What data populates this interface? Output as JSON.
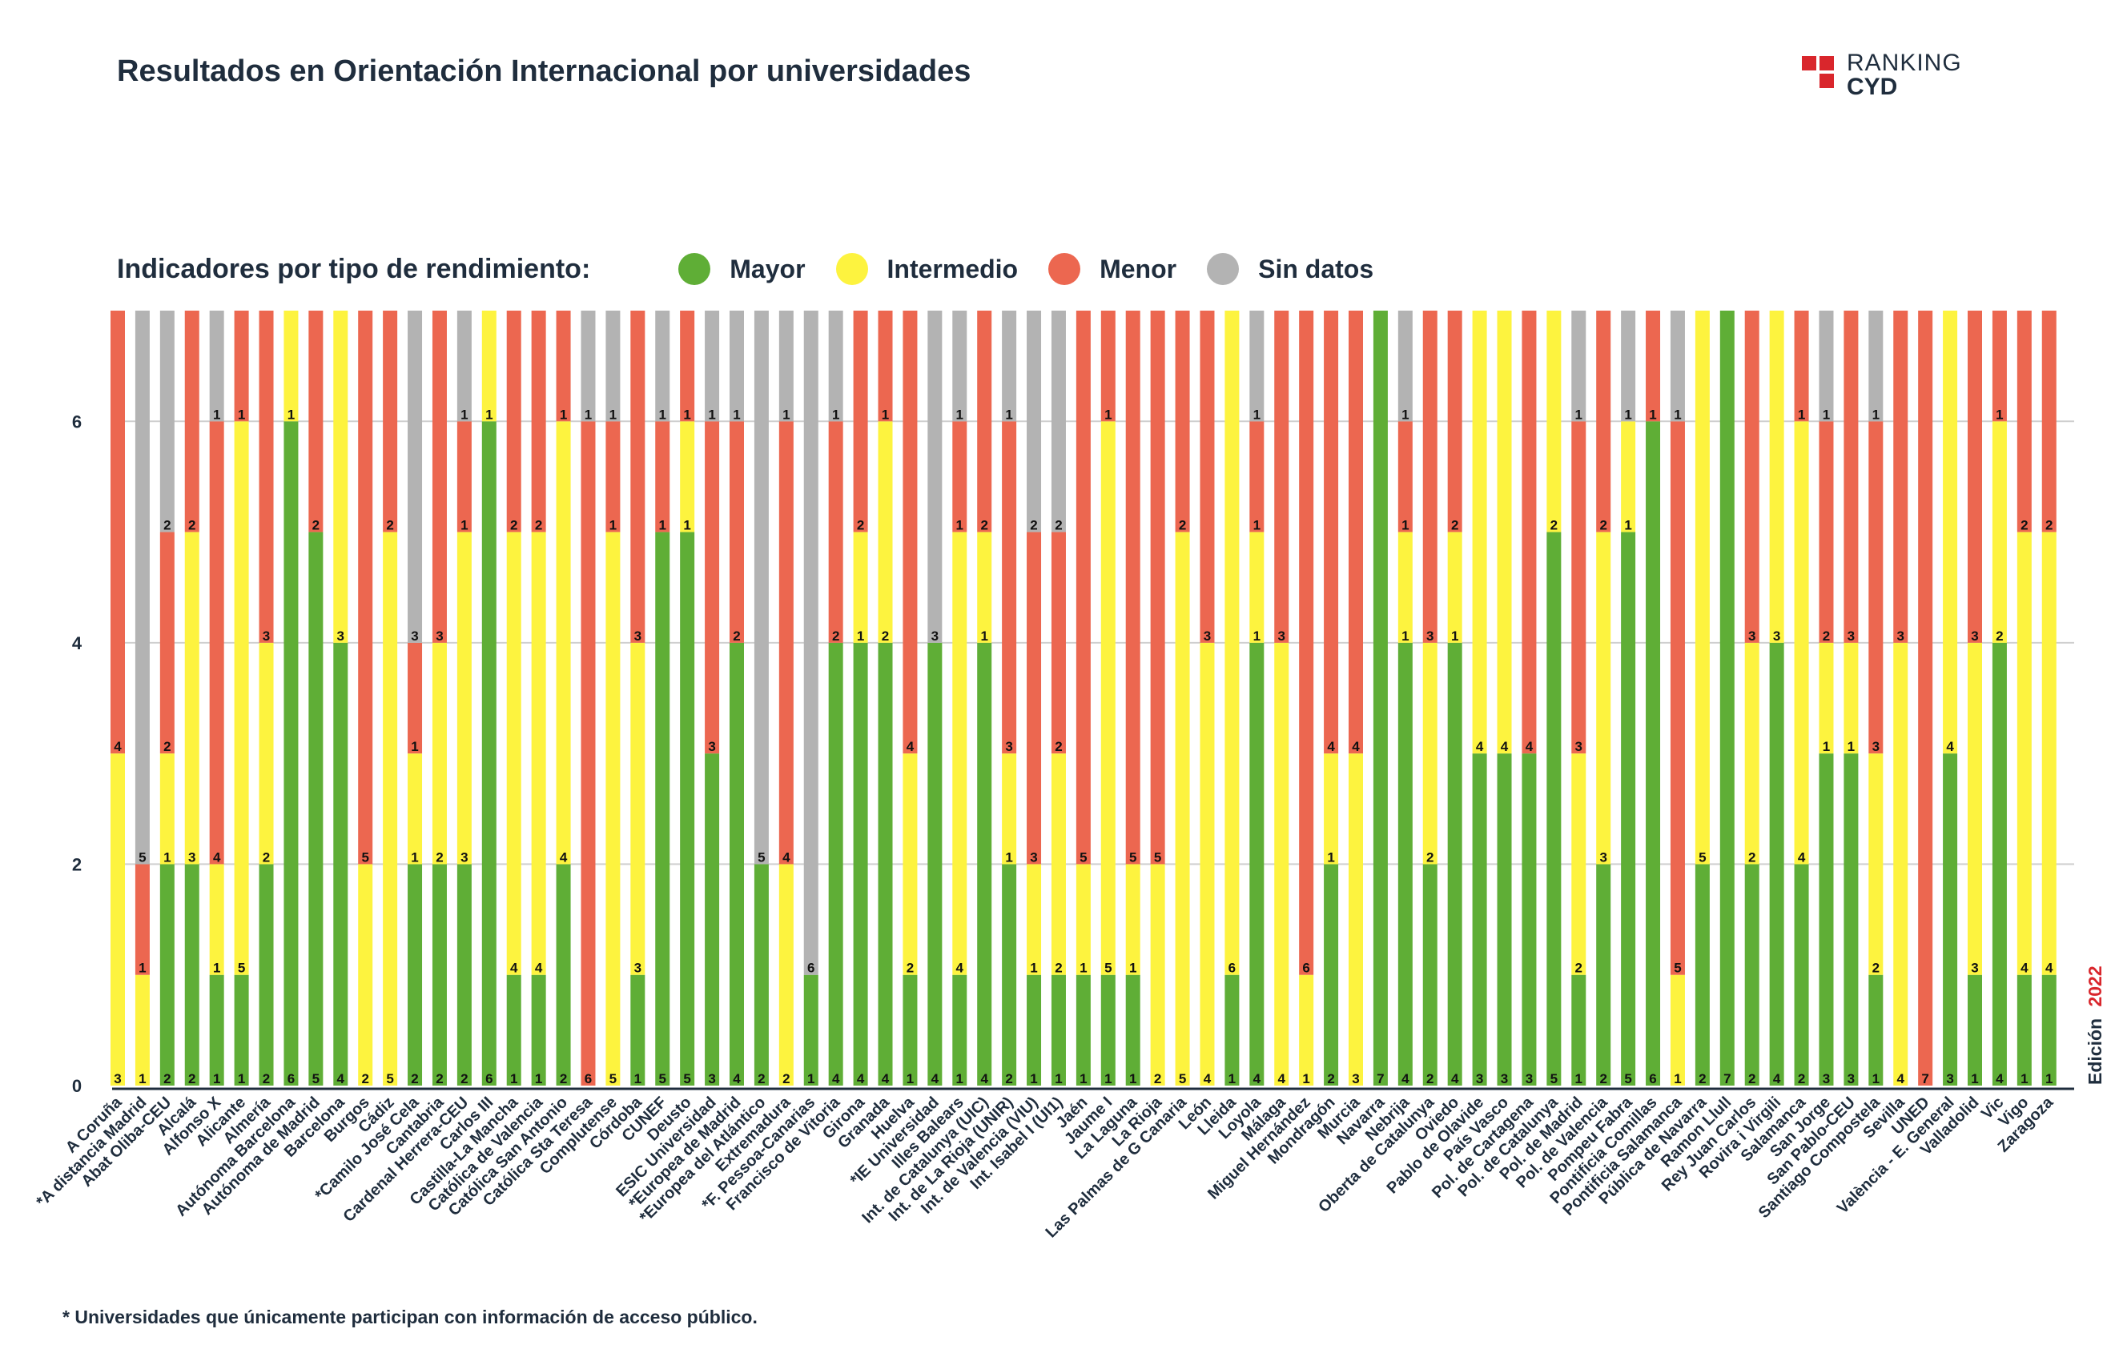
{
  "title": "Resultados en Orientación Internacional por universidades",
  "logo": {
    "line1": "RANKING",
    "line2": "CYD"
  },
  "legend": {
    "title": "Indicadores por tipo de rendimiento:",
    "items": [
      {
        "label": "Mayor",
        "color": "#5fae36"
      },
      {
        "label": "Intermedio",
        "color": "#fdf33f"
      },
      {
        "label": "Menor",
        "color": "#ec6750"
      },
      {
        "label": "Sin datos",
        "color": "#b3b3b3"
      }
    ]
  },
  "edition": {
    "label": "Edición",
    "year": "2022"
  },
  "footnote": "* Universidades que únicamente participan con información de acceso público.",
  "chart_data": {
    "type": "bar",
    "stacked": true,
    "ylim": [
      0,
      7
    ],
    "yticks": [
      0,
      2,
      4,
      6
    ],
    "grid": true,
    "legend_position": "top",
    "categories": [
      "A Coruña",
      "*A distancia Madrid",
      "Abat Oliba-CEU",
      "Alcalá",
      "Alfonso X",
      "Alicante",
      "Almería",
      "Autónoma Barcelona",
      "Autónoma de Madrid",
      "Barcelona",
      "Burgos",
      "Cádiz",
      "*Camilo José Cela",
      "Cantabria",
      "Cardenal Herrera-CEU",
      "Carlos III",
      "Castilla-La Mancha",
      "Católica de Valencia",
      "Católica San Antonio",
      "Católica Sta Teresa",
      "Complutense",
      "Córdoba",
      "CUNEF",
      "Deusto",
      "ESIC Universidad",
      "*Europea de Madrid",
      "*Europea del Atlántico",
      "Extremadura",
      "*F. Pessoa-Canarias",
      "Francisco de Vitoria",
      "Girona",
      "Granada",
      "Huelva",
      "*IE Universidad",
      "Illes Balears",
      "Int. de Catalunya (UIC)",
      "Int. de La Rioja (UNIR)",
      "Int. de Valencia (VIU)",
      "Int. Isabel I (UI1)",
      "Jaén",
      "Jaume I",
      "La Laguna",
      "La Rioja",
      "Las Palmas de G Canaria",
      "León",
      "Lleida",
      "Loyola",
      "Málaga",
      "Miguel Hernández",
      "Mondragón",
      "Murcia",
      "Navarra",
      "Nebrija",
      "Oberta de Catalunya",
      "Oviedo",
      "Pablo de Olavide",
      "País Vasco",
      "Pol. de Cartagena",
      "Pol. de Catalunya",
      "Pol. de Madrid",
      "Pol. de Valencia",
      "Pompeu Fabra",
      "Pontificia Comillas",
      "Pontificia Salamanca",
      "Pública de Navarra",
      "Ramon Llull",
      "Rey Juan Carlos",
      "Rovira i Virgili",
      "Salamanca",
      "San Jorge",
      "San Pablo-CEU",
      "Santiago Compostela",
      "Sevilla",
      "UNED",
      "València - E. General",
      "Valladolid",
      "Vic",
      "Vigo",
      "Zaragoza"
    ],
    "series": [
      {
        "name": "Mayor",
        "values": [
          0,
          0,
          2,
          2,
          1,
          1,
          2,
          6,
          5,
          4,
          0,
          0,
          2,
          2,
          2,
          6,
          1,
          1,
          2,
          0,
          0,
          1,
          5,
          5,
          3,
          4,
          2,
          0,
          1,
          4,
          4,
          4,
          1,
          4,
          1,
          4,
          2,
          1,
          1,
          1,
          1,
          1,
          0,
          0,
          0,
          1,
          4,
          0,
          0,
          2,
          0,
          7,
          4,
          2,
          4,
          3,
          3,
          3,
          5,
          1,
          2,
          5,
          6,
          0,
          2,
          7,
          2,
          4,
          2,
          3,
          3,
          1,
          0,
          0,
          3,
          1,
          4,
          1,
          1
        ]
      },
      {
        "name": "Intermedio",
        "values": [
          3,
          1,
          1,
          3,
          1,
          5,
          2,
          1,
          0,
          3,
          2,
          5,
          1,
          2,
          3,
          1,
          4,
          4,
          4,
          0,
          5,
          3,
          0,
          1,
          0,
          0,
          0,
          2,
          0,
          0,
          1,
          2,
          2,
          0,
          4,
          1,
          1,
          1,
          2,
          1,
          5,
          1,
          2,
          5,
          4,
          6,
          1,
          4,
          1,
          1,
          3,
          0,
          1,
          2,
          1,
          4,
          4,
          0,
          2,
          2,
          3,
          1,
          0,
          1,
          5,
          0,
          2,
          3,
          4,
          1,
          1,
          2,
          4,
          0,
          4,
          3,
          2,
          4,
          4
        ]
      },
      {
        "name": "Menor",
        "values": [
          4,
          1,
          2,
          2,
          4,
          1,
          3,
          0,
          2,
          0,
          5,
          2,
          1,
          3,
          1,
          0,
          2,
          2,
          1,
          6,
          1,
          3,
          1,
          1,
          3,
          2,
          0,
          4,
          0,
          2,
          2,
          1,
          4,
          0,
          1,
          2,
          3,
          3,
          2,
          5,
          1,
          5,
          5,
          2,
          3,
          0,
          1,
          3,
          6,
          4,
          4,
          0,
          1,
          3,
          2,
          0,
          0,
          4,
          0,
          3,
          2,
          0,
          1,
          5,
          0,
          0,
          3,
          0,
          1,
          2,
          3,
          3,
          3,
          7,
          0,
          3,
          1,
          2,
          2
        ]
      },
      {
        "name": "Sin datos",
        "values": [
          0,
          5,
          2,
          0,
          1,
          0,
          0,
          0,
          0,
          0,
          0,
          0,
          3,
          0,
          1,
          0,
          0,
          0,
          0,
          1,
          1,
          0,
          1,
          0,
          1,
          1,
          5,
          1,
          6,
          1,
          0,
          0,
          0,
          3,
          1,
          0,
          1,
          2,
          2,
          0,
          0,
          0,
          0,
          0,
          0,
          0,
          1,
          0,
          0,
          0,
          0,
          0,
          1,
          0,
          0,
          0,
          0,
          0,
          0,
          1,
          0,
          1,
          0,
          1,
          0,
          0,
          0,
          0,
          0,
          1,
          0,
          1,
          0,
          0,
          0,
          0,
          0,
          0,
          0
        ]
      }
    ]
  }
}
